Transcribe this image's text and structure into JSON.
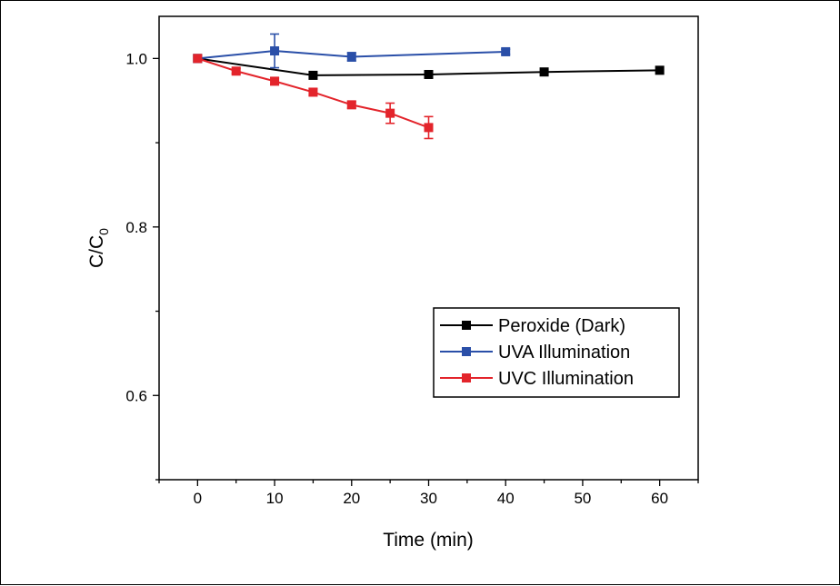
{
  "chart_data": {
    "type": "line",
    "xlabel": "Time (min)",
    "ylabel": "C/C",
    "ylabel_subscript": "0",
    "xlim": [
      -5,
      65
    ],
    "ylim": [
      0.5,
      1.05
    ],
    "xticks": [
      0,
      10,
      20,
      30,
      40,
      50,
      60
    ],
    "xtick_labels": [
      "0",
      "10",
      "20",
      "30",
      "40",
      "50",
      "60"
    ],
    "yticks": [
      0.6,
      0.8,
      1.0
    ],
    "ytick_labels": [
      "0.6",
      "0.8",
      "1.0"
    ],
    "grid": false,
    "legend_position": "lower-right",
    "series": [
      {
        "name": "Peroxide (Dark)",
        "color": "#000000",
        "x": [
          0,
          15,
          30,
          45,
          60
        ],
        "y": [
          1.0,
          0.98,
          0.981,
          0.984,
          0.986
        ],
        "err": [
          0,
          0,
          0,
          0,
          0
        ]
      },
      {
        "name": "UVA Illumination",
        "color": "#2a4fa8",
        "x": [
          0,
          10,
          20,
          40
        ],
        "y": [
          1.0,
          1.009,
          1.002,
          1.008
        ],
        "err": [
          0,
          0.02,
          0.005,
          0.003
        ]
      },
      {
        "name": "UVC Illumination",
        "color": "#e3242b",
        "x": [
          0,
          5,
          10,
          15,
          20,
          25,
          30
        ],
        "y": [
          1.0,
          0.985,
          0.973,
          0.96,
          0.945,
          0.935,
          0.918
        ],
        "err": [
          0,
          0.003,
          0.004,
          0.004,
          0.004,
          0.012,
          0.013
        ]
      }
    ]
  }
}
